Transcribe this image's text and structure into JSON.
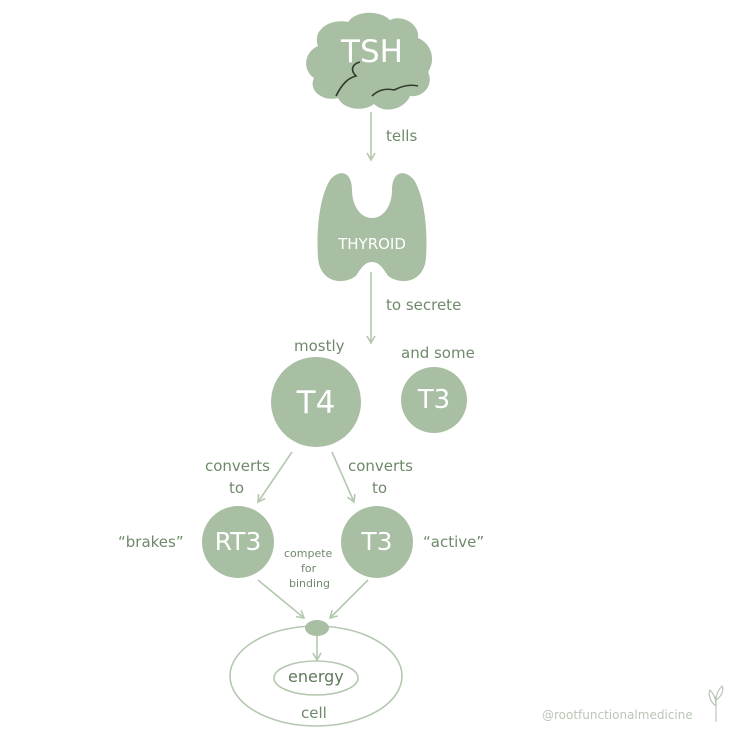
{
  "colors": {
    "node_fill": "#a8bfa3",
    "node_text": "#ffffff",
    "label_text": "#6f8a6b",
    "line": "#b4c8b0",
    "watermark": "#b9c7b6"
  },
  "nodes": {
    "tsh": "TSH",
    "thyroid": "THYROID",
    "t4": "T4",
    "t3_secreted": "T3",
    "rt3": "RT3",
    "t3_active": "T3",
    "energy": "energy",
    "cell": "cell"
  },
  "labels": {
    "tells": "tells",
    "to_secrete": "to secrete",
    "mostly": "mostly",
    "and_some": "and some",
    "converts_to_left_line1": "converts",
    "converts_to_left_line2": "to",
    "converts_to_right_line1": "converts",
    "converts_to_right_line2": "to",
    "brakes": "“brakes”",
    "active": "“active”",
    "compete_line1": "compete",
    "compete_line2": "for",
    "compete_line3": "binding"
  },
  "watermark": {
    "handle": "@rootfunctionalmedicine",
    "icon": "sprout-icon"
  }
}
